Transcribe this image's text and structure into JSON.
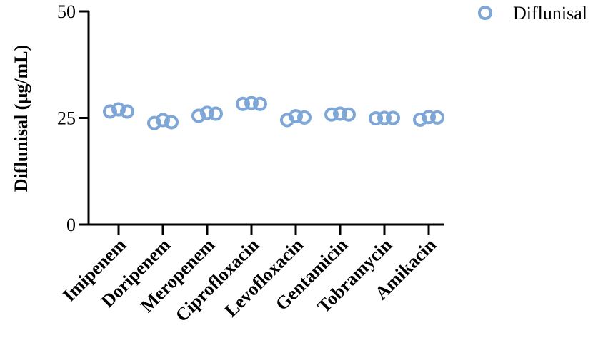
{
  "chart_data": {
    "type": "scatter",
    "title": "",
    "xlabel": "",
    "ylabel": "Diflunisal (µg/mL)",
    "ylim": [
      0,
      50
    ],
    "yticks": [
      "0",
      "25",
      "50"
    ],
    "categories": [
      "Imipenem",
      "Doripenem",
      "Meropenem",
      "Ciprofloxacin",
      "Levofloxacin",
      "Gentamicin",
      "Tobramycin",
      "Amikacin"
    ],
    "series": [
      {
        "name": "Diflunisal",
        "color": "#7ea6d6",
        "marker": "open-circle",
        "values": [
          [
            26.5,
            27.0,
            26.5
          ],
          [
            23.8,
            24.5,
            24.0
          ],
          [
            25.5,
            26.2,
            26.0
          ],
          [
            28.3,
            28.5,
            28.3
          ],
          [
            24.5,
            25.4,
            25.1
          ],
          [
            25.8,
            26.0,
            25.8
          ],
          [
            24.9,
            25.0,
            25.0
          ],
          [
            24.6,
            25.2,
            25.1
          ]
        ]
      }
    ],
    "legend": "top-right",
    "grid": false
  }
}
